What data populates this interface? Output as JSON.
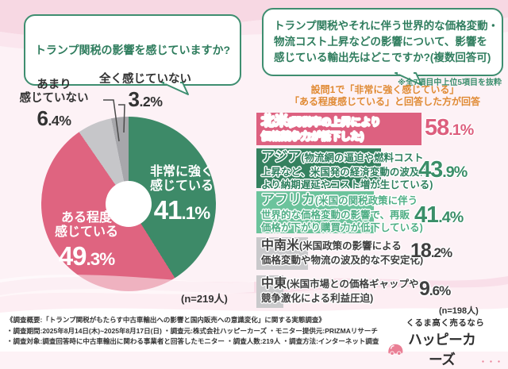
{
  "chart_data": [
    {
      "type": "pie",
      "question": "トランプ関税の影響を感じていますか?",
      "labels": [
        "非常に強く感じている",
        "ある程度感じている",
        "あまり感じていない",
        "全く感じていない"
      ],
      "values": [
        41.1,
        49.3,
        6.4,
        3.2
      ],
      "colors": [
        "#3d8a68",
        "#df6480",
        "#c6c6c9",
        "#a7a7ab"
      ],
      "donut": true,
      "start_angle": "12-oclock",
      "direction": "clockwise",
      "n_label": "(n=219人)",
      "label_lines": [
        [
          "非常に強く",
          "感じている"
        ],
        [
          "ある程度",
          "感じている"
        ],
        [
          "あまり",
          "感じていない"
        ],
        [
          "全く感じていない"
        ]
      ]
    },
    {
      "type": "bar",
      "question": "トランプ関税やそれに伴う世界的な価格変動・物流コスト上昇などの影響について、影響を感じている輸出先はどこですか?(複数回答可)",
      "categories": [
        "北米",
        "アジア",
        "アフリカ",
        "中南米",
        "中東"
      ],
      "values": [
        58.1,
        43.9,
        41.4,
        18.2,
        9.6
      ],
      "xlim": [
        0,
        100
      ],
      "bar_colors": [
        "#dd6180",
        "#35815f",
        "#6cc39c",
        "#c9c9cb",
        "#c9c9cb"
      ],
      "value_colors": [
        "#dd5f7e",
        "#3a8e68",
        "#3a8e68",
        "#3f3f3f",
        "#3f3f3f"
      ],
      "label_colors": [
        "#ffffff",
        "#2e7f5e",
        "#4fae85",
        "#3f3f3f",
        "#3f3f3f"
      ],
      "n_label": "(n=198人)",
      "rows": [
        {
          "cat": "北米",
          "desc": [
            "(関税率の上昇により",
            "価格競争力が低下した)"
          ]
        },
        {
          "cat": "アジア",
          "desc": [
            "(物流網の逼迫や燃料コスト",
            "上昇など、米国発の経済変動の波及に",
            "より納期遅延やコスト増が生じている)"
          ]
        },
        {
          "cat": "アフリカ",
          "desc": [
            "(米国の関税政策に伴う",
            "世界的な価格変動の影響で、再販",
            "価格が下がり購買力が低下している)"
          ]
        },
        {
          "cat": "中南米",
          "desc": [
            "(米国政策の影響による",
            "価格変動や物流の波及的な不安定化)"
          ]
        },
        {
          "cat": "中東",
          "desc": [
            "(米国市場との価格ギャップや",
            "競争激化による利益圧迫)"
          ]
        }
      ]
    }
  ],
  "header": {
    "right_question_lines": [
      "トランプ関税やそれに伴う世界的な価格変動・",
      "物流コスト上昇などの影響について、影響を",
      "感じている輸出先はどこですか?(複数回答可)"
    ]
  },
  "notes": {
    "excerpt": "※全7項目中上位5項目を抜粋",
    "filter_line1": "設問1で「非常に強く感じている」",
    "filter_line2": "「ある程度感じている」と回答した方が回答"
  },
  "footer": {
    "line1": "《調査概要:「トランプ関税がもたらす中古車輸出への影響と国内販売への意識変化」に関する実態調査》",
    "line2": "・調査期間:2025年8月14日(木)~2025年8月17日(日) ・調査元:株式会社ハッピーカーズ ・モニター提供元:PRIZMAリサーチ",
    "line3": "・調査対象:調査回答時に中古車輸出に関わる事業者と回答したモニター ・調査人数:219人 ・調査方法:インターネット調査"
  },
  "logo": {
    "tagline": "くるま高く売るなら",
    "brand": "ハッピーカーズ",
    "dots": "・・・",
    "brand_pink": "#ea7f95",
    "bubble_green": "#3e8e70",
    "note_orange": "#e08a33"
  }
}
